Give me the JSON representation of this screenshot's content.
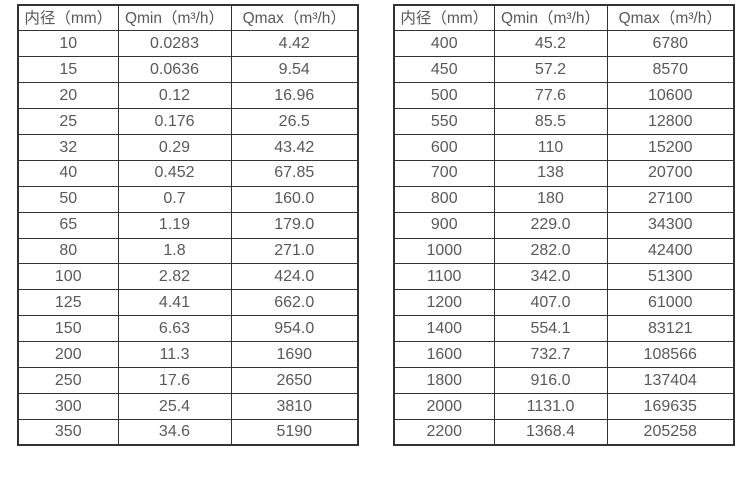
{
  "page": {
    "background": "#ffffff",
    "border_color": "#333333",
    "text_color": "#595959"
  },
  "chart_data": [
    {
      "type": "table",
      "title": "",
      "columns": [
        "内径（mm）",
        "Qmin（m³/h）",
        "Qmax（m³/h）"
      ],
      "rows": [
        [
          "10",
          "0.0283",
          "4.42"
        ],
        [
          "15",
          "0.0636",
          "9.54"
        ],
        [
          "20",
          "0.12",
          "16.96"
        ],
        [
          "25",
          "0.176",
          "26.5"
        ],
        [
          "32",
          "0.29",
          "43.42"
        ],
        [
          "40",
          "0.452",
          "67.85"
        ],
        [
          "50",
          "0.7",
          "160.0"
        ],
        [
          "65",
          "1.19",
          "179.0"
        ],
        [
          "80",
          "1.8",
          "271.0"
        ],
        [
          "100",
          "2.82",
          "424.0"
        ],
        [
          "125",
          "4.41",
          "662.0"
        ],
        [
          "150",
          "6.63",
          "954.0"
        ],
        [
          "200",
          "11.3",
          "1690"
        ],
        [
          "250",
          "17.6",
          "2650"
        ],
        [
          "300",
          "25.4",
          "3810"
        ],
        [
          "350",
          "34.6",
          "5190"
        ]
      ]
    },
    {
      "type": "table",
      "title": "",
      "columns": [
        "内径（mm）",
        "Qmin（m³/h）",
        "Qmax（m³/h）"
      ],
      "rows": [
        [
          "400",
          "45.2",
          "6780"
        ],
        [
          "450",
          "57.2",
          "8570"
        ],
        [
          "500",
          "77.6",
          "10600"
        ],
        [
          "550",
          "85.5",
          "12800"
        ],
        [
          "600",
          "110",
          "15200"
        ],
        [
          "700",
          "138",
          "20700"
        ],
        [
          "800",
          "180",
          "27100"
        ],
        [
          "900",
          "229.0",
          "34300"
        ],
        [
          "1000",
          "282.0",
          "42400"
        ],
        [
          "1100",
          "342.0",
          "51300"
        ],
        [
          "1200",
          "407.0",
          "61000"
        ],
        [
          "1400",
          "554.1",
          "83121"
        ],
        [
          "1600",
          "732.7",
          "108566"
        ],
        [
          "1800",
          "916.0",
          "137404"
        ],
        [
          "2000",
          "1131.0",
          "169635"
        ],
        [
          "2200",
          "1368.4",
          "205258"
        ]
      ]
    }
  ]
}
